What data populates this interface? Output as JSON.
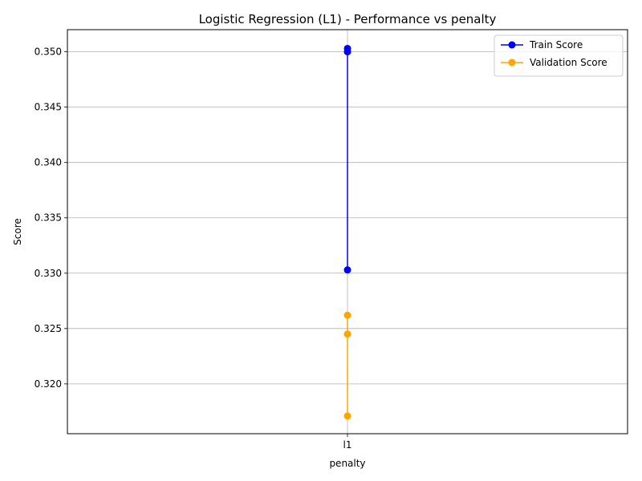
{
  "chart_data": {
    "type": "line",
    "title": "Logistic Regression (L1) - Performance vs penalty",
    "xlabel": "penalty",
    "ylabel": "Score",
    "categories": [
      "l1"
    ],
    "ylim": [
      0.3155,
      0.352
    ],
    "yticks": [
      "0.320",
      "0.325",
      "0.330",
      "0.335",
      "0.340",
      "0.345",
      "0.350"
    ],
    "ytick_values": [
      0.32,
      0.325,
      0.33,
      0.335,
      0.34,
      0.345,
      0.35
    ],
    "grid": true,
    "legend_position": "top-right",
    "series": [
      {
        "name": "Train Score",
        "color": "#0000ff",
        "x": [
          "l1",
          "l1",
          "l1"
        ],
        "values": [
          0.3503,
          0.35,
          0.3303
        ]
      },
      {
        "name": "Validation Score",
        "color": "#ffa500",
        "x": [
          "l1",
          "l1",
          "l1"
        ],
        "values": [
          0.3262,
          0.3245,
          0.3171
        ]
      }
    ]
  }
}
